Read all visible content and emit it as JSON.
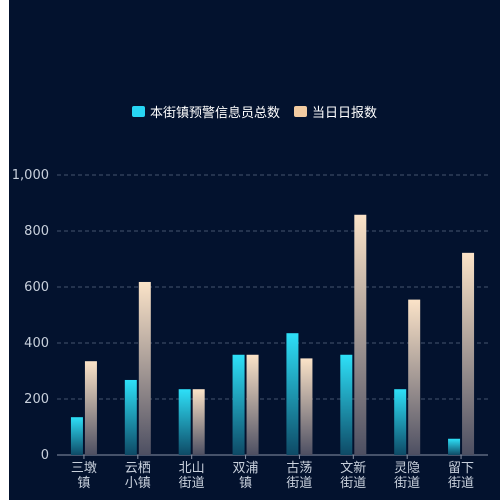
{
  "chart_data": {
    "type": "bar",
    "categories": [
      [
        "三墩",
        "镇"
      ],
      [
        "云栖",
        "小镇"
      ],
      [
        "北山",
        "街道"
      ],
      [
        "双浦",
        "镇"
      ],
      [
        "古荡",
        "街道"
      ],
      [
        "文新",
        "街道"
      ],
      [
        "灵隐",
        "街道"
      ],
      [
        "留下",
        "街道"
      ]
    ],
    "series": [
      {
        "name": "本街镇预警信息员总数",
        "color": "#27d5f3",
        "values": [
          135,
          268,
          235,
          358,
          435,
          358,
          235,
          58
        ]
      },
      {
        "name": "当日日报数",
        "color": "#f2cba1",
        "values": [
          335,
          618,
          235,
          358,
          345,
          858,
          555,
          722
        ]
      }
    ],
    "ylim": [
      0,
      1000
    ],
    "yticks": [
      0,
      200,
      400,
      600,
      800,
      1000
    ],
    "ytick_labels": [
      "0",
      "200",
      "400",
      "600",
      "800",
      "1,000"
    ],
    "grid": true,
    "legend_position": "top-center"
  }
}
